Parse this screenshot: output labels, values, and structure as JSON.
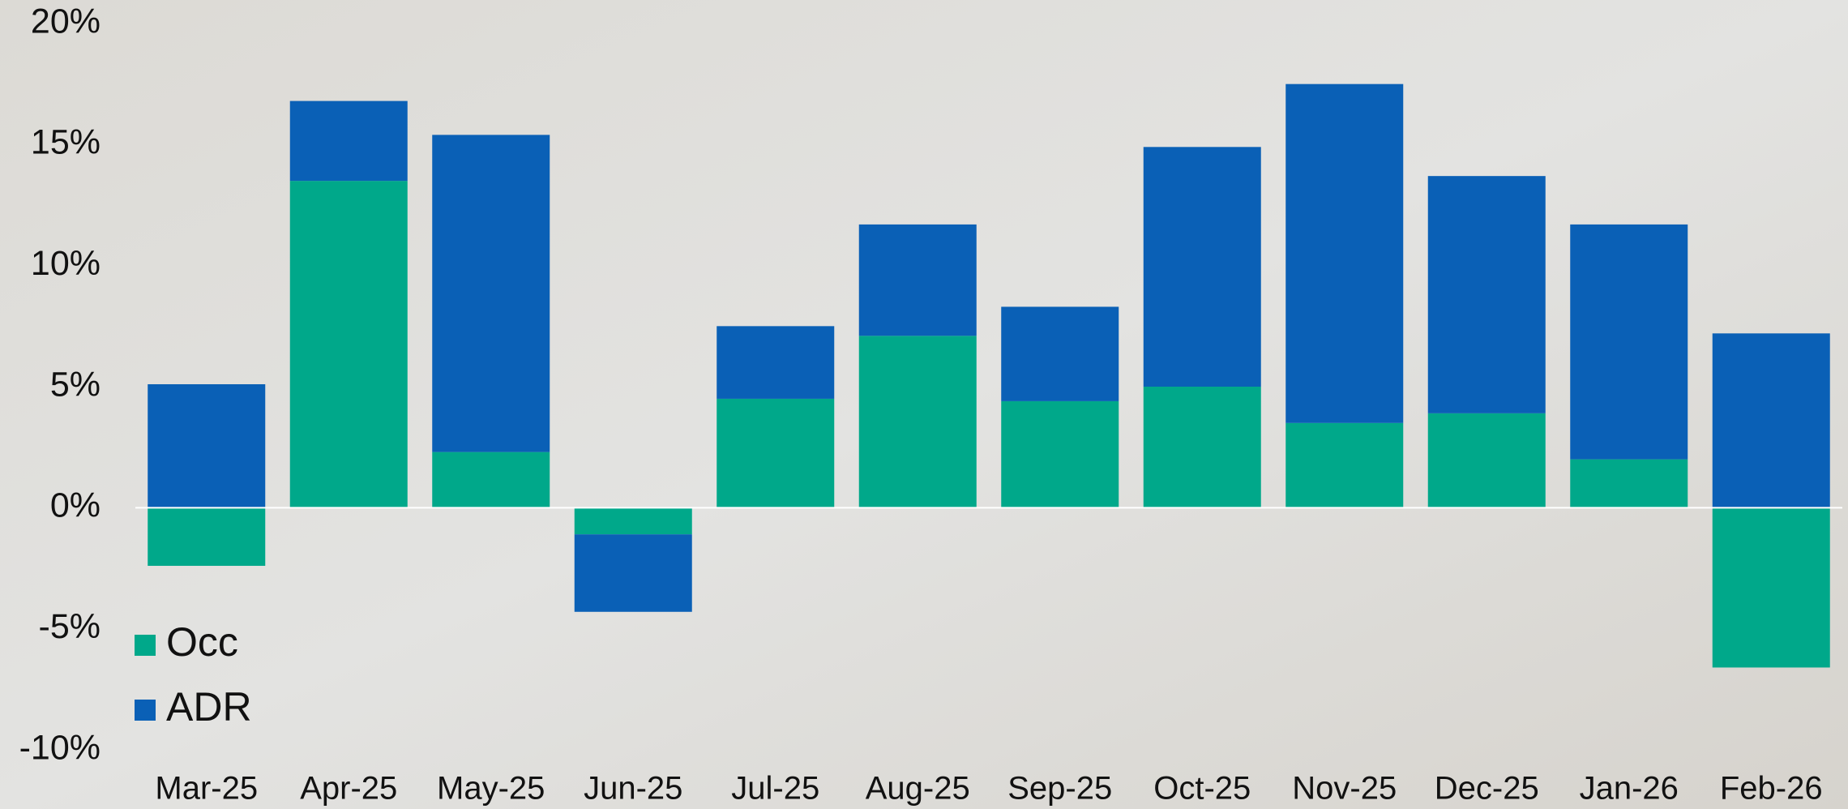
{
  "chart_data": {
    "type": "stacked-bar",
    "categories": [
      "Mar-25",
      "Apr-25",
      "May-25",
      "Jun-25",
      "Jul-25",
      "Aug-25",
      "Sep-25",
      "Oct-25",
      "Nov-25",
      "Dec-25",
      "Jan-26",
      "Feb-26"
    ],
    "series": [
      {
        "name": "Occ",
        "color": "#00a88a",
        "values": [
          -2.4,
          13.5,
          2.3,
          -1.1,
          4.5,
          7.1,
          4.4,
          5.0,
          3.5,
          3.9,
          2.0,
          -6.6
        ]
      },
      {
        "name": "ADR",
        "color": "#0a60b6",
        "values": [
          5.1,
          3.3,
          13.1,
          -3.2,
          3.0,
          4.6,
          3.9,
          9.9,
          14.0,
          9.8,
          9.7,
          7.2
        ]
      }
    ],
    "ylim": [
      -10,
      20
    ],
    "yticks": [
      {
        "value": -10,
        "label": "-10%"
      },
      {
        "value": -5,
        "label": "-5%"
      },
      {
        "value": 0,
        "label": "0%"
      },
      {
        "value": 5,
        "label": "5%"
      },
      {
        "value": 10,
        "label": "10%"
      },
      {
        "value": 15,
        "label": "15%"
      },
      {
        "value": 20,
        "label": "20%"
      }
    ],
    "legend": "lower-left"
  }
}
